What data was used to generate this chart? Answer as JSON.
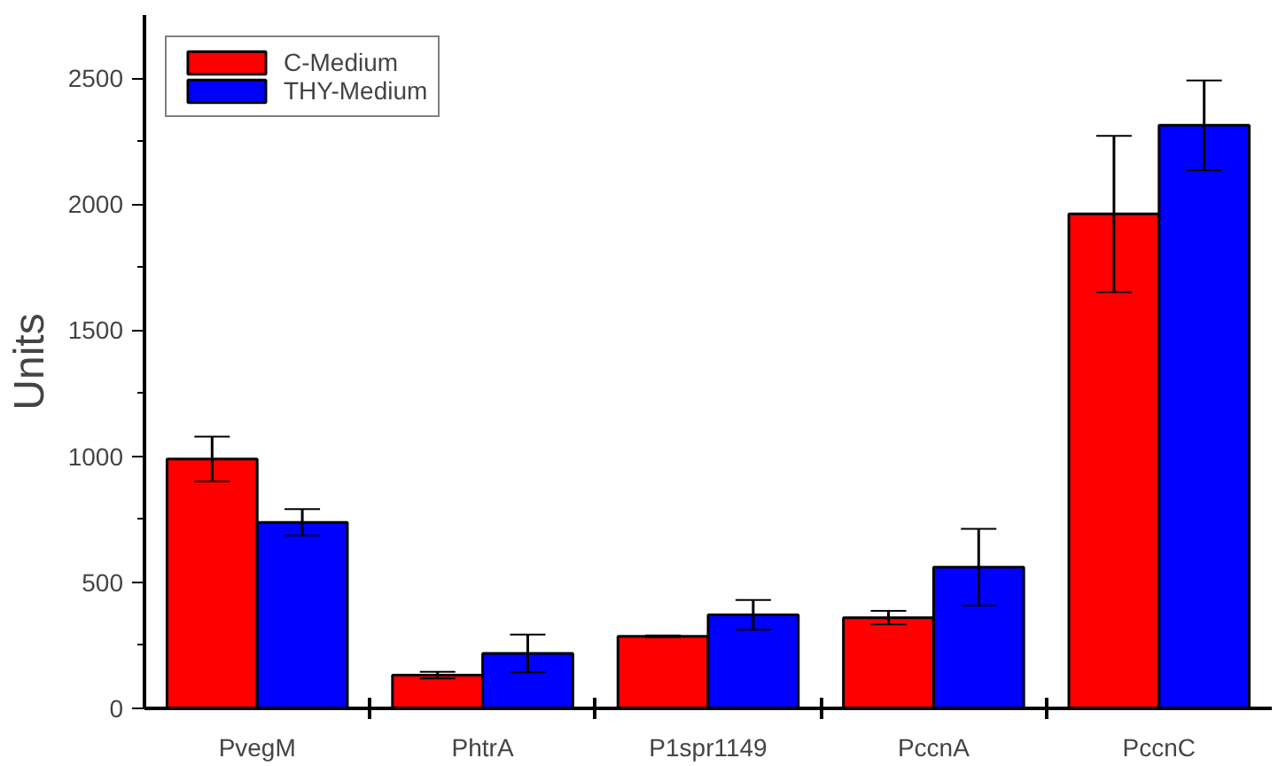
{
  "chart_data": {
    "type": "bar",
    "ylabel": "Units",
    "categories": [
      "PvegM",
      "PhtrA",
      "P1spr1149",
      "PccnA",
      "PccnC"
    ],
    "series": [
      {
        "name": "C-Medium",
        "color": "#ff0000",
        "values": [
          989,
          132,
          286,
          360,
          1961
        ],
        "errors": [
          89,
          13,
          3,
          27,
          310
        ]
      },
      {
        "name": "THY-Medium",
        "color": "#0000ff",
        "values": [
          738,
          218,
          371,
          560,
          2313
        ],
        "errors": [
          52,
          75,
          59,
          152,
          178
        ]
      }
    ],
    "ylim": [
      0,
      2750
    ],
    "yticks": [
      0,
      {
        "value": 250,
        "label": null
      },
      500,
      {
        "value": 750,
        "label": null
      },
      1000,
      {
        "value": 1250,
        "label": null
      },
      1500,
      {
        "value": 1750,
        "label": null
      },
      2000,
      {
        "value": 2250,
        "label": null
      },
      2500
    ],
    "grid": false,
    "legend": "top left"
  }
}
